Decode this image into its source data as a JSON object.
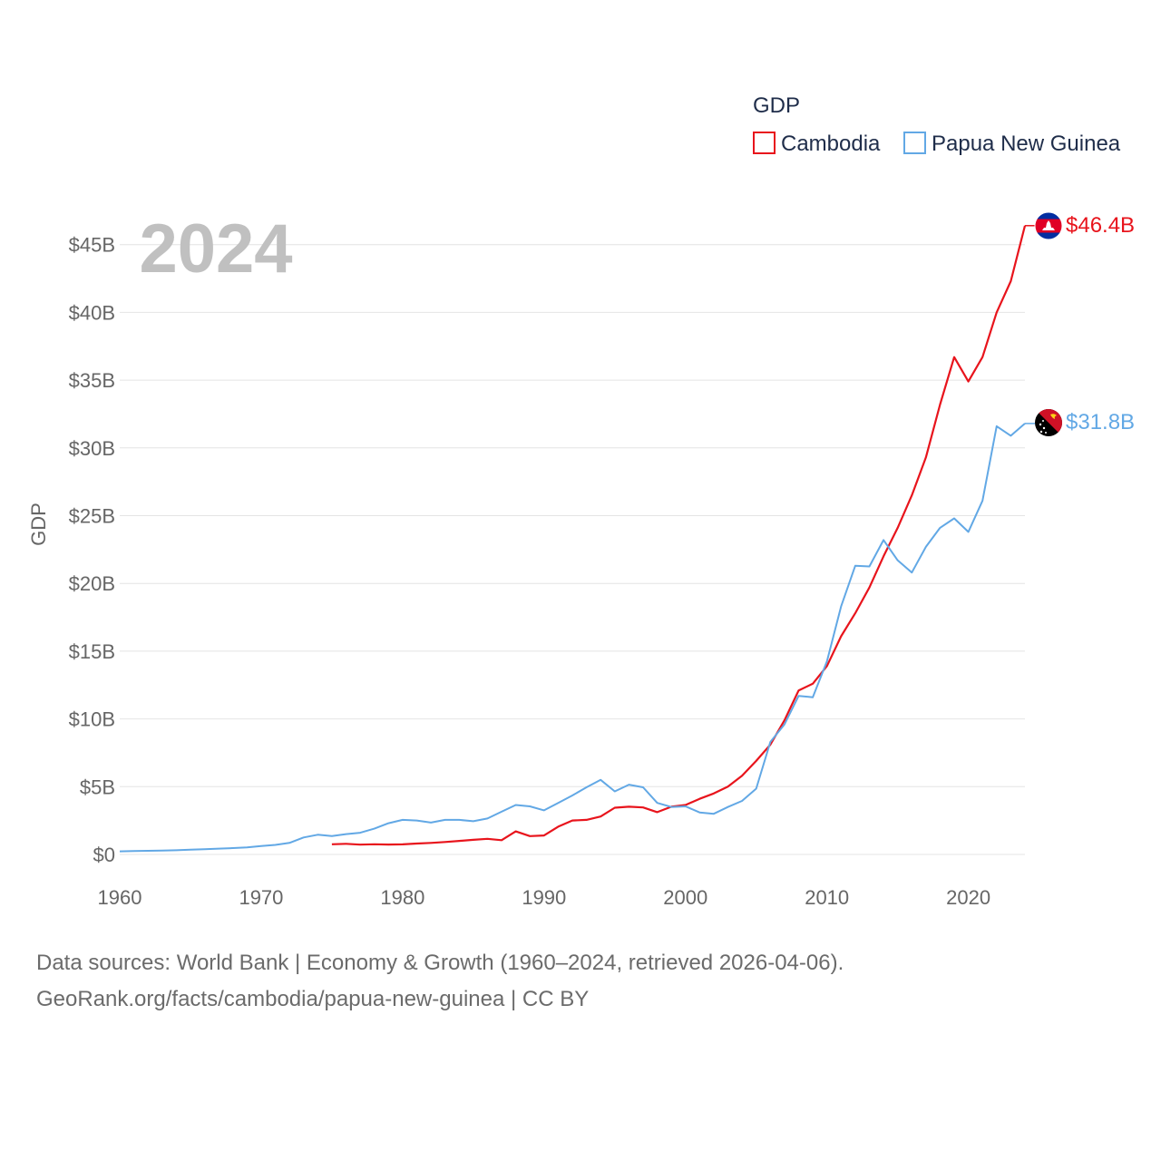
{
  "chart_data": {
    "type": "line",
    "title": "GDP",
    "xlabel": "",
    "ylabel": "GDP",
    "xlim": [
      1960,
      2024
    ],
    "ylim": [
      0,
      46.4
    ],
    "x_ticks": [
      "1960",
      "1970",
      "1980",
      "1990",
      "2000",
      "2010",
      "2020"
    ],
    "y_ticks": [
      "$0",
      "$5B",
      "$10B",
      "$15B",
      "$20B",
      "$25B",
      "$30B",
      "$35B",
      "$40B",
      "$45B"
    ],
    "year_label": "2024",
    "legend_title": "GDP",
    "series": [
      {
        "name": "Cambodia",
        "color": "#e8141c",
        "end_label": "$46.4B",
        "flag": "cambodia-flag",
        "x": [
          1975,
          1976,
          1977,
          1978,
          1979,
          1980,
          1981,
          1982,
          1983,
          1984,
          1985,
          1986,
          1987,
          1988,
          1989,
          1990,
          1991,
          1992,
          1993,
          1994,
          1995,
          1996,
          1997,
          1998,
          1999,
          2000,
          2001,
          2002,
          2003,
          2004,
          2005,
          2006,
          2007,
          2008,
          2009,
          2010,
          2011,
          2012,
          2013,
          2014,
          2015,
          2016,
          2017,
          2018,
          2019,
          2020,
          2021,
          2022,
          2023,
          2024
        ],
        "values": [
          0.75,
          0.78,
          0.72,
          0.75,
          0.73,
          0.74,
          0.8,
          0.85,
          0.92,
          1.0,
          1.08,
          1.15,
          1.05,
          1.7,
          1.35,
          1.4,
          2.05,
          2.5,
          2.55,
          2.8,
          3.45,
          3.52,
          3.47,
          3.12,
          3.52,
          3.65,
          4.1,
          4.5,
          5.0,
          5.8,
          6.9,
          8.1,
          9.9,
          12.1,
          12.6,
          13.9,
          16.1,
          17.8,
          19.7,
          22.0,
          24.1,
          26.5,
          29.3,
          33.2,
          36.7,
          34.9,
          36.7,
          40.0,
          42.3,
          46.4
        ]
      },
      {
        "name": "Papua New Guinea",
        "color": "#62a8e5",
        "end_label": "$31.8B",
        "flag": "papua-new-guinea-flag",
        "x": [
          1960,
          1961,
          1962,
          1963,
          1964,
          1965,
          1966,
          1967,
          1968,
          1969,
          1970,
          1971,
          1972,
          1973,
          1974,
          1975,
          1976,
          1977,
          1978,
          1979,
          1980,
          1981,
          1982,
          1983,
          1984,
          1985,
          1986,
          1987,
          1988,
          1989,
          1990,
          1991,
          1992,
          1993,
          1994,
          1995,
          1996,
          1997,
          1998,
          1999,
          2000,
          2001,
          2002,
          2003,
          2004,
          2005,
          2006,
          2007,
          2008,
          2009,
          2010,
          2011,
          2012,
          2013,
          2014,
          2015,
          2016,
          2017,
          2018,
          2019,
          2020,
          2021,
          2022,
          2023,
          2024
        ],
        "values": [
          0.23,
          0.25,
          0.27,
          0.28,
          0.31,
          0.35,
          0.39,
          0.43,
          0.47,
          0.52,
          0.62,
          0.7,
          0.85,
          1.25,
          1.45,
          1.35,
          1.5,
          1.6,
          1.9,
          2.3,
          2.55,
          2.5,
          2.35,
          2.55,
          2.55,
          2.45,
          2.65,
          3.15,
          3.65,
          3.55,
          3.25,
          3.8,
          4.35,
          4.95,
          5.5,
          4.65,
          5.15,
          4.95,
          3.8,
          3.5,
          3.55,
          3.1,
          3.0,
          3.5,
          3.95,
          4.85,
          8.3,
          9.6,
          11.7,
          11.6,
          14.25,
          18.3,
          21.3,
          21.25,
          23.2,
          21.7,
          20.8,
          22.7,
          24.1,
          24.8,
          23.8,
          26.1,
          31.6,
          30.9,
          31.8
        ]
      }
    ]
  },
  "footer": {
    "line1": "Data sources: World Bank | Economy & Growth (1960–2024, retrieved 2026-04-06).",
    "line2": "GeoRank.org/facts/cambodia/papua-new-guinea | CC BY"
  }
}
